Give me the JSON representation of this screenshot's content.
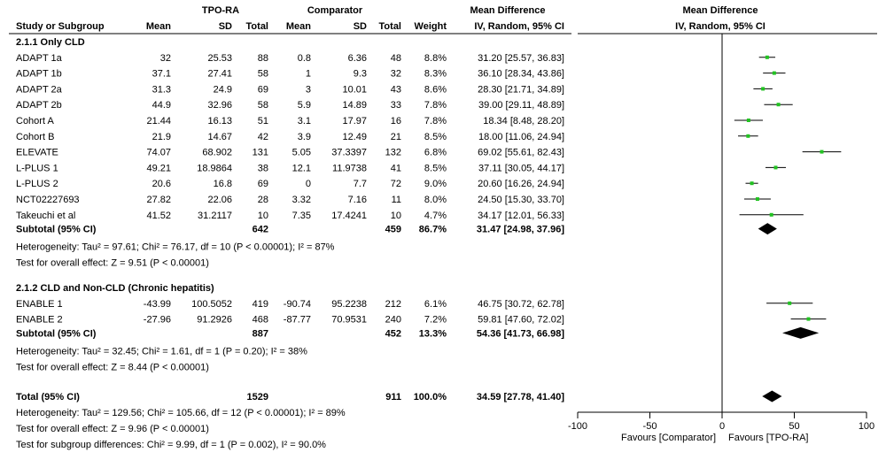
{
  "headers": {
    "group1": "TPO-RA",
    "group2": "Comparator",
    "md_col": "Mean Difference",
    "md_col_sub": "IV, Random, 95% CI",
    "plot": "Mean Difference",
    "plot_sub": "IV, Random, 95% CI",
    "study": "Study or Subgroup",
    "mean1": "Mean",
    "sd1": "SD",
    "total1": "Total",
    "mean2": "Mean",
    "sd2": "SD",
    "total2": "Total",
    "weight": "Weight"
  },
  "subgroups": [
    {
      "label": "2.1.1 Only CLD",
      "studies": [
        {
          "name": "ADAPT 1a",
          "mean1": "32",
          "sd1": "25.53",
          "n1": "88",
          "mean2": "0.8",
          "sd2": "6.36",
          "n2": "48",
          "weight": "8.8%",
          "ci": "31.20 [25.57, 36.83]"
        },
        {
          "name": "ADAPT 1b",
          "mean1": "37.1",
          "sd1": "27.41",
          "n1": "58",
          "mean2": "1",
          "sd2": "9.3",
          "n2": "32",
          "weight": "8.3%",
          "ci": "36.10 [28.34, 43.86]"
        },
        {
          "name": "ADAPT 2a",
          "mean1": "31.3",
          "sd1": "24.9",
          "n1": "69",
          "mean2": "3",
          "sd2": "10.01",
          "n2": "43",
          "weight": "8.6%",
          "ci": "28.30 [21.71, 34.89]"
        },
        {
          "name": "ADAPT 2b",
          "mean1": "44.9",
          "sd1": "32.96",
          "n1": "58",
          "mean2": "5.9",
          "sd2": "14.89",
          "n2": "33",
          "weight": "7.8%",
          "ci": "39.00 [29.11, 48.89]"
        },
        {
          "name": "Cohort A",
          "mean1": "21.44",
          "sd1": "16.13",
          "n1": "51",
          "mean2": "3.1",
          "sd2": "17.97",
          "n2": "16",
          "weight": "7.8%",
          "ci": "18.34 [8.48, 28.20]"
        },
        {
          "name": "Cohort B",
          "mean1": "21.9",
          "sd1": "14.67",
          "n1": "42",
          "mean2": "3.9",
          "sd2": "12.49",
          "n2": "21",
          "weight": "8.5%",
          "ci": "18.00 [11.06, 24.94]"
        },
        {
          "name": "ELEVATE",
          "mean1": "74.07",
          "sd1": "68.902",
          "n1": "131",
          "mean2": "5.05",
          "sd2": "37.3397",
          "n2": "132",
          "weight": "6.8%",
          "ci": "69.02 [55.61, 82.43]"
        },
        {
          "name": "L-PLUS 1",
          "mean1": "49.21",
          "sd1": "18.9864",
          "n1": "38",
          "mean2": "12.1",
          "sd2": "11.9738",
          "n2": "41",
          "weight": "8.5%",
          "ci": "37.11 [30.05, 44.17]"
        },
        {
          "name": "L-PLUS 2",
          "mean1": "20.6",
          "sd1": "16.8",
          "n1": "69",
          "mean2": "0",
          "sd2": "7.7",
          "n2": "72",
          "weight": "9.0%",
          "ci": "20.60 [16.26, 24.94]"
        },
        {
          "name": "NCT02227693",
          "mean1": "27.82",
          "sd1": "22.06",
          "n1": "28",
          "mean2": "3.32",
          "sd2": "7.16",
          "n2": "11",
          "weight": "8.0%",
          "ci": "24.50 [15.30, 33.70]"
        },
        {
          "name": "Takeuchi et al",
          "mean1": "41.52",
          "sd1": "31.2117",
          "n1": "10",
          "mean2": "7.35",
          "sd2": "17.4241",
          "n2": "10",
          "weight": "4.7%",
          "ci": "34.17 [12.01, 56.33]"
        }
      ],
      "subtotal": {
        "label": "Subtotal (95% CI)",
        "n1": "642",
        "n2": "459",
        "weight": "86.7%",
        "ci": "31.47 [24.98, 37.96]"
      },
      "heterogeneity": "Heterogeneity: Tau² = 97.61; Chi² = 76.17, df = 10 (P < 0.00001); I² = 87%",
      "overall": "Test for overall effect: Z = 9.51 (P < 0.00001)"
    },
    {
      "label": "2.1.2 CLD and Non-CLD (Chronic hepatitis)",
      "studies": [
        {
          "name": "ENABLE 1",
          "mean1": "-43.99",
          "sd1": "100.5052",
          "n1": "419",
          "mean2": "-90.74",
          "sd2": "95.2238",
          "n2": "212",
          "weight": "6.1%",
          "ci": "46.75 [30.72, 62.78]"
        },
        {
          "name": "ENABLE 2",
          "mean1": "-27.96",
          "sd1": "91.2926",
          "n1": "468",
          "mean2": "-87.77",
          "sd2": "70.9531",
          "n2": "240",
          "weight": "7.2%",
          "ci": "59.81 [47.60, 72.02]"
        }
      ],
      "subtotal": {
        "label": "Subtotal (95% CI)",
        "n1": "887",
        "n2": "452",
        "weight": "13.3%",
        "ci": "54.36 [41.73, 66.98]"
      },
      "heterogeneity": "Heterogeneity: Tau² = 32.45; Chi² = 1.61, df = 1 (P = 0.20); I² = 38%",
      "overall": "Test for overall effect: Z = 8.44 (P < 0.00001)"
    }
  ],
  "total": {
    "label": "Total (95% CI)",
    "n1": "1529",
    "n2": "911",
    "weight": "100.0%",
    "ci": "34.59 [27.78, 41.40]",
    "heterogeneity": "Heterogeneity: Tau² = 129.56; Chi² = 105.66, df = 12 (P < 0.00001); I² = 89%",
    "overall": "Test for overall effect: Z = 9.96 (P < 0.00001)",
    "subgroup_diff": "Test for subgroup differences: Chi² = 9.99, df = 1 (P = 0.002), I² = 90.0%"
  },
  "axis": {
    "ticks": [
      "-100",
      "-50",
      "0",
      "50",
      "100"
    ],
    "favours_left": "Favours [Comparator]",
    "favours_right": "Favours [TPO-RA]"
  },
  "colors": {
    "point": "#22c322",
    "ci": "#000000",
    "diamond": "#000000"
  },
  "chart_data": {
    "type": "forest",
    "xlim": [
      -100,
      100
    ],
    "xticks": [
      -100,
      -50,
      0,
      50,
      100
    ],
    "studies": [
      {
        "study": "ADAPT 1a",
        "md": 31.2,
        "lo": 25.57,
        "hi": 36.83,
        "weight": 8.8
      },
      {
        "study": "ADAPT 1b",
        "md": 36.1,
        "lo": 28.34,
        "hi": 43.86,
        "weight": 8.3
      },
      {
        "study": "ADAPT 2a",
        "md": 28.3,
        "lo": 21.71,
        "hi": 34.89,
        "weight": 8.6
      },
      {
        "study": "ADAPT 2b",
        "md": 39.0,
        "lo": 29.11,
        "hi": 48.89,
        "weight": 7.8
      },
      {
        "study": "Cohort A",
        "md": 18.34,
        "lo": 8.48,
        "hi": 28.2,
        "weight": 7.8
      },
      {
        "study": "Cohort B",
        "md": 18.0,
        "lo": 11.06,
        "hi": 24.94,
        "weight": 8.5
      },
      {
        "study": "ELEVATE",
        "md": 69.02,
        "lo": 55.61,
        "hi": 82.43,
        "weight": 6.8
      },
      {
        "study": "L-PLUS 1",
        "md": 37.11,
        "lo": 30.05,
        "hi": 44.17,
        "weight": 8.5
      },
      {
        "study": "L-PLUS 2",
        "md": 20.6,
        "lo": 16.26,
        "hi": 24.94,
        "weight": 9.0
      },
      {
        "study": "NCT02227693",
        "md": 24.5,
        "lo": 15.3,
        "hi": 33.7,
        "weight": 8.0
      },
      {
        "study": "Takeuchi et al",
        "md": 34.17,
        "lo": 12.01,
        "hi": 56.33,
        "weight": 4.7
      },
      {
        "study": "ENABLE 1",
        "md": 46.75,
        "lo": 30.72,
        "hi": 62.78,
        "weight": 6.1
      },
      {
        "study": "ENABLE 2",
        "md": 59.81,
        "lo": 47.6,
        "hi": 72.02,
        "weight": 7.2
      }
    ],
    "pooled": [
      {
        "label": "Subtotal (95% CI)",
        "md": 31.47,
        "lo": 24.98,
        "hi": 37.96
      },
      {
        "label": "Subtotal (95% CI)",
        "md": 54.36,
        "lo": 41.73,
        "hi": 66.98
      },
      {
        "label": "Total (95% CI)",
        "md": 34.59,
        "lo": 27.78,
        "hi": 41.4
      }
    ]
  }
}
